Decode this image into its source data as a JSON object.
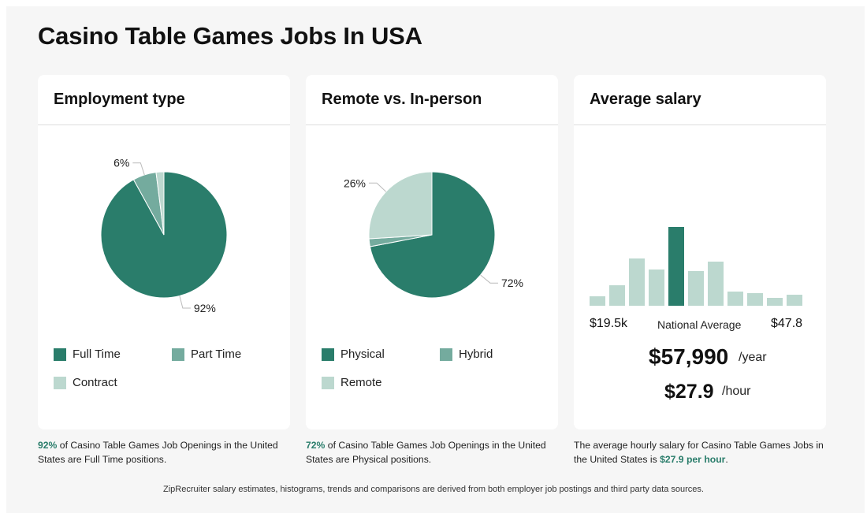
{
  "title": "Casino Table Games Jobs In USA",
  "colors": {
    "dark": "#2a7d6b",
    "mid": "#74ab9e",
    "light": "#bcd8cf",
    "bg": "#f6f6f6"
  },
  "employment": {
    "title": "Employment type",
    "legend": [
      "Full Time",
      "Part Time",
      "Contract"
    ],
    "caption_pct": "92%",
    "caption_text": " of Casino Table Games Job Openings in the United States are Full Time positions."
  },
  "remote": {
    "title": "Remote vs. In-person",
    "legend": [
      "Physical",
      "Hybrid",
      "Remote"
    ],
    "caption_pct": "72%",
    "caption_text": " of Casino Table Games Job Openings in the United States are Physical positions."
  },
  "salary": {
    "title": "Average salary",
    "min_label": "$19.5k",
    "mid_label": "National Average",
    "max_label": "$47.8",
    "yearly": "$57,990",
    "yearly_unit": "/year",
    "hourly": "$27.9",
    "hourly_unit": "/hour",
    "caption_text": "The average hourly salary for Casino Table Games Jobs in the United States is ",
    "caption_value": "$27.9 per hour",
    "caption_end": "."
  },
  "footnote": "ZipRecruiter salary estimates, histograms, trends and comparisons are derived from both employer job postings and third party data sources.",
  "chart_data": [
    {
      "type": "pie",
      "title": "Employment type",
      "labels": [
        "Full Time",
        "Part Time",
        "Contract"
      ],
      "values": [
        92,
        6,
        2
      ],
      "data_labels": [
        "92%",
        "6%",
        ""
      ],
      "legend": "bottom"
    },
    {
      "type": "pie",
      "title": "Remote vs. In-person",
      "labels": [
        "Physical",
        "Hybrid",
        "Remote"
      ],
      "values": [
        72,
        2,
        26
      ],
      "data_labels": [
        "72%",
        "",
        "26%"
      ],
      "legend": "bottom"
    },
    {
      "type": "bar",
      "title": "Average salary",
      "values": [
        6,
        13,
        30,
        23,
        50,
        22,
        28,
        9,
        8,
        5,
        7
      ],
      "highlight_index": 4,
      "ylim": [
        0,
        50
      ]
    }
  ]
}
